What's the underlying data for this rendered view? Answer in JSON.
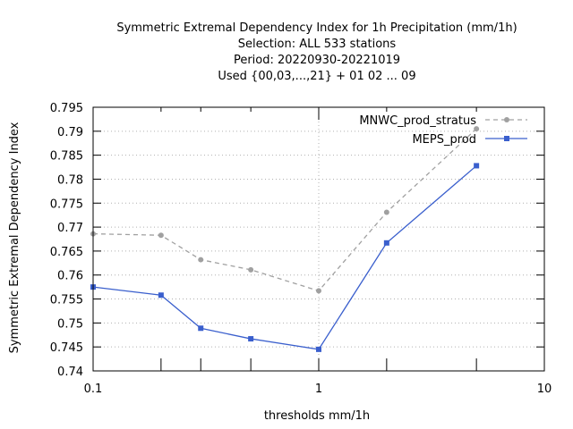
{
  "chart_data": {
    "type": "line",
    "title_lines": [
      "Symmetric Extremal Dependency Index  for 1h Precipitation (mm/1h)",
      "Selection: ALL    533 stations",
      "Period: 20220930-20221019",
      "Used {00,03,...,21} + 01 02 ... 09"
    ],
    "xlabel": "thresholds mm/1h",
    "ylabel": "Symmetric Extremal Dependency Index",
    "x_scale": "log",
    "xlim": [
      0.1,
      10
    ],
    "ylim": [
      0.74,
      0.795
    ],
    "x_ticks": [
      {
        "value": 0.1,
        "label": "0.1"
      },
      {
        "value": 1,
        "label": "1"
      },
      {
        "value": 10,
        "label": "10"
      }
    ],
    "x_minor_ticks": [
      0.2,
      0.3,
      0.5,
      2,
      5
    ],
    "y_ticks": [
      {
        "value": 0.74,
        "label": "0.74"
      },
      {
        "value": 0.745,
        "label": "0.745"
      },
      {
        "value": 0.75,
        "label": "0.75"
      },
      {
        "value": 0.755,
        "label": "0.755"
      },
      {
        "value": 0.76,
        "label": "0.76"
      },
      {
        "value": 0.765,
        "label": "0.765"
      },
      {
        "value": 0.77,
        "label": "0.77"
      },
      {
        "value": 0.775,
        "label": "0.775"
      },
      {
        "value": 0.78,
        "label": "0.78"
      },
      {
        "value": 0.785,
        "label": "0.785"
      },
      {
        "value": 0.79,
        "label": "0.79"
      },
      {
        "value": 0.795,
        "label": "0.795"
      }
    ],
    "grid": "dotted",
    "reference_line_x": 1,
    "legend_position": "top-right",
    "x": [
      0.1,
      0.2,
      0.3,
      0.5,
      1,
      2,
      5
    ],
    "series": [
      {
        "name": "MNWC_prod_stratus",
        "color": "#a0a0a0",
        "line_style": "dashed",
        "marker": "circle",
        "values": [
          0.7686,
          0.7683,
          0.7632,
          0.7611,
          0.7567,
          0.7731,
          0.7905
        ]
      },
      {
        "name": "MEPS_prod",
        "color": "#3a5fcd",
        "line_style": "solid",
        "marker": "square",
        "values": [
          0.7575,
          0.7558,
          0.7489,
          0.7467,
          0.7445,
          0.7667,
          0.7828
        ]
      }
    ]
  }
}
